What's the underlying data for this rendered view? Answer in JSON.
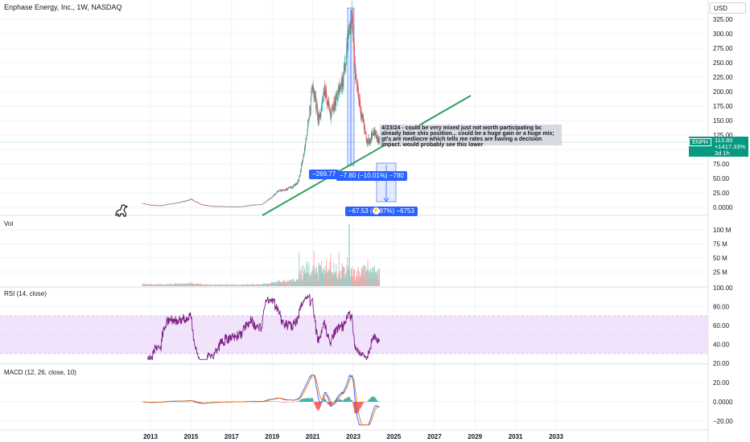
{
  "header": {
    "title": "Enphase Energy, Inc., 1W, NASDAQ",
    "currency": "USD"
  },
  "annotation": {
    "text": "4/23/24 - could be very mixed just not worth participating bc already have shis position... could be a huge gain or a huge mix; gt's are mediocre which tells me rates are having a decision impact. would probably see this lower"
  },
  "measure_labels": {
    "left": "−269.77",
    "middle": "−7.80 (−10.01%) −780",
    "bottom_left": "−67.53 (",
    "bottom_right": "87%) −6753"
  },
  "price_tag": {
    "symbol": "ENPH",
    "price": "113.80",
    "change": "+1417.33%",
    "countdown": "3d 1h"
  },
  "panes": {
    "volume": "Vol",
    "rsi": "RSI (14, close)",
    "macd": "MACD (12, 26, close, 10)"
  },
  "colors": {
    "up": "#26a69a",
    "down": "#ef5350",
    "trendline": "#2e9e5b",
    "rsi_line": "#7e1f86",
    "rsi_band": "#f1e3fb",
    "macd_line": "#2962ff",
    "signal_line": "#ff6d00",
    "measure": "#2962ff"
  },
  "chart_data": [
    {
      "type": "candlestick",
      "pane": "price",
      "y_ticks": [
        "325.00",
        "300.00",
        "275.00",
        "250.00",
        "225.00",
        "200.00",
        "175.00",
        "150.00",
        "125.00",
        "100.00",
        "75.00",
        "50.00",
        "25.00",
        "0.0000"
      ],
      "ylim": [
        0,
        340
      ],
      "x_ticks": [
        "2013",
        "2015",
        "2017",
        "2019",
        "2021",
        "2023",
        "2025",
        "2027",
        "2029",
        "2031",
        "2033"
      ],
      "xlim": [
        2012.0,
        2034.0
      ],
      "series": [
        {
          "x": [
            2012.6,
            2013.0,
            2013.5,
            2014.0,
            2014.5,
            2015.0,
            2015.5,
            2016.0,
            2016.5,
            2017.0,
            2017.5,
            2018.0,
            2018.5,
            2019.0,
            2019.3,
            2019.6,
            2020.0,
            2020.3,
            2020.6,
            2020.9,
            2021.0,
            2021.3,
            2021.6,
            2021.9,
            2022.2,
            2022.5,
            2022.8,
            2022.95,
            2023.1,
            2023.4,
            2023.7,
            2024.0,
            2024.3
          ],
          "values": [
            7,
            4,
            3,
            6,
            9,
            14,
            5,
            2,
            1.5,
            1,
            1.2,
            4,
            5,
            18,
            28,
            30,
            35,
            45,
            100,
            180,
            210,
            150,
            200,
            160,
            190,
            220,
            310,
            330,
            230,
            160,
            110,
            130,
            113
          ]
        }
      ],
      "last_price": 113.8
    },
    {
      "type": "bar",
      "pane": "volume",
      "y_ticks": [
        "100 M",
        "75 M",
        "50 M",
        "25 M"
      ],
      "ylim": [
        0,
        110
      ]
    },
    {
      "type": "line",
      "pane": "rsi",
      "y_ticks": [
        "100.00",
        "80.00",
        "60.00",
        "40.00",
        "20.00"
      ],
      "ylim": [
        20,
        100
      ],
      "band": [
        30,
        70
      ]
    },
    {
      "type": "line",
      "pane": "macd",
      "y_ticks": [
        "20.00",
        "0.0000",
        "−20.00"
      ],
      "ylim": [
        -26,
        30
      ]
    }
  ]
}
